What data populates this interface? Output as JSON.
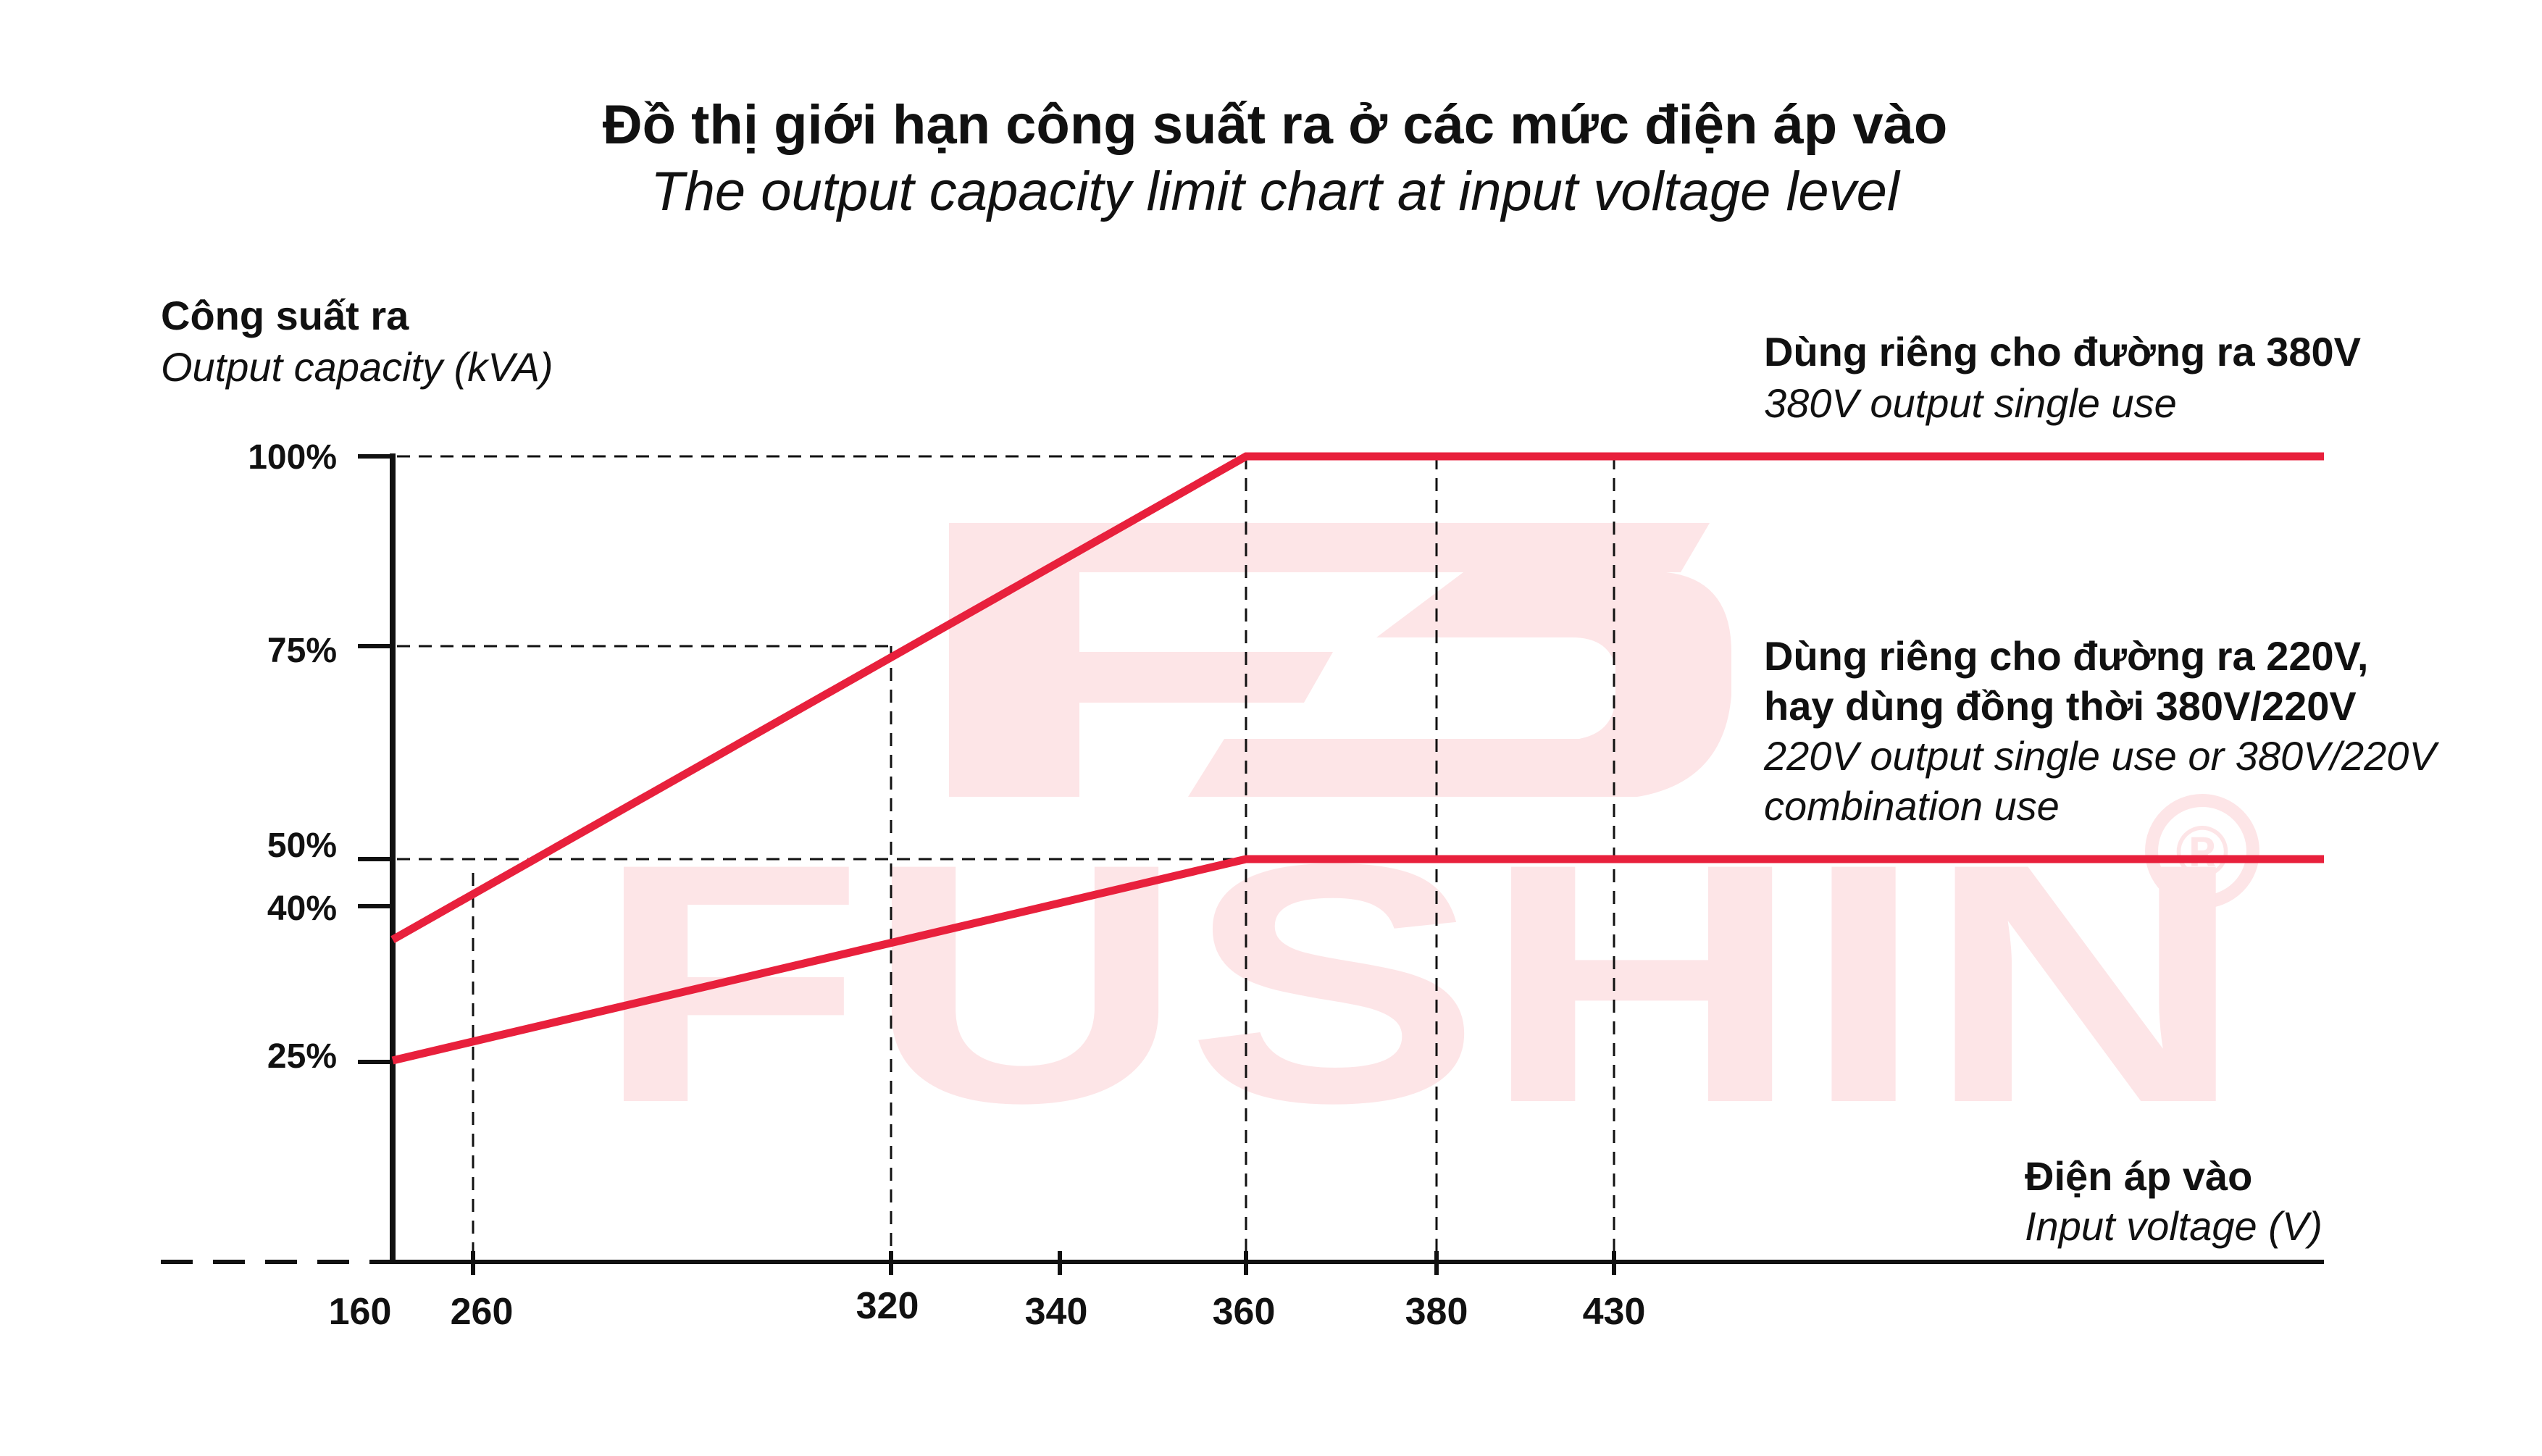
{
  "chart_data": {
    "type": "line",
    "title": "Đồ thị giới hạn công suất ra ở các mức điện áp vào",
    "subtitle": "The output capacity limit chart at input voltage level",
    "ylabel": "Công suất ra",
    "ylabel_en": "Output capacity (kVA)",
    "xlabel": "Điện áp vào",
    "xlabel_en": "Input voltage (V)",
    "x_ticks": [
      "160",
      "260",
      "320",
      "340",
      "360",
      "380",
      "430"
    ],
    "y_ticks": [
      "100%",
      "75%",
      "50%",
      "40%",
      "25%"
    ],
    "grid": "dashed reference lines",
    "series": [
      {
        "label_bold": "Dùng riêng cho đường ra 380V",
        "label_italic": "380V output single use",
        "color": "#e8203c",
        "points": [
          {
            "x": "160",
            "y": 40
          },
          {
            "x": "360",
            "y": 100
          },
          {
            "x": "430+",
            "y": 100
          }
        ]
      },
      {
        "label_bold_1": "Dùng riêng cho đường ra 220V,",
        "label_bold_2": "hay dùng đồng thời 380V/220V",
        "label_italic_1": "220V output single use or 380V/220V",
        "label_italic_2": "combination use",
        "color": "#e8203c",
        "points": [
          {
            "x": "160",
            "y": 25
          },
          {
            "x": "360",
            "y": 50
          },
          {
            "x": "430+",
            "y": 50
          }
        ]
      }
    ],
    "watermark": {
      "text": "FUSHIN",
      "mark": "®"
    }
  }
}
